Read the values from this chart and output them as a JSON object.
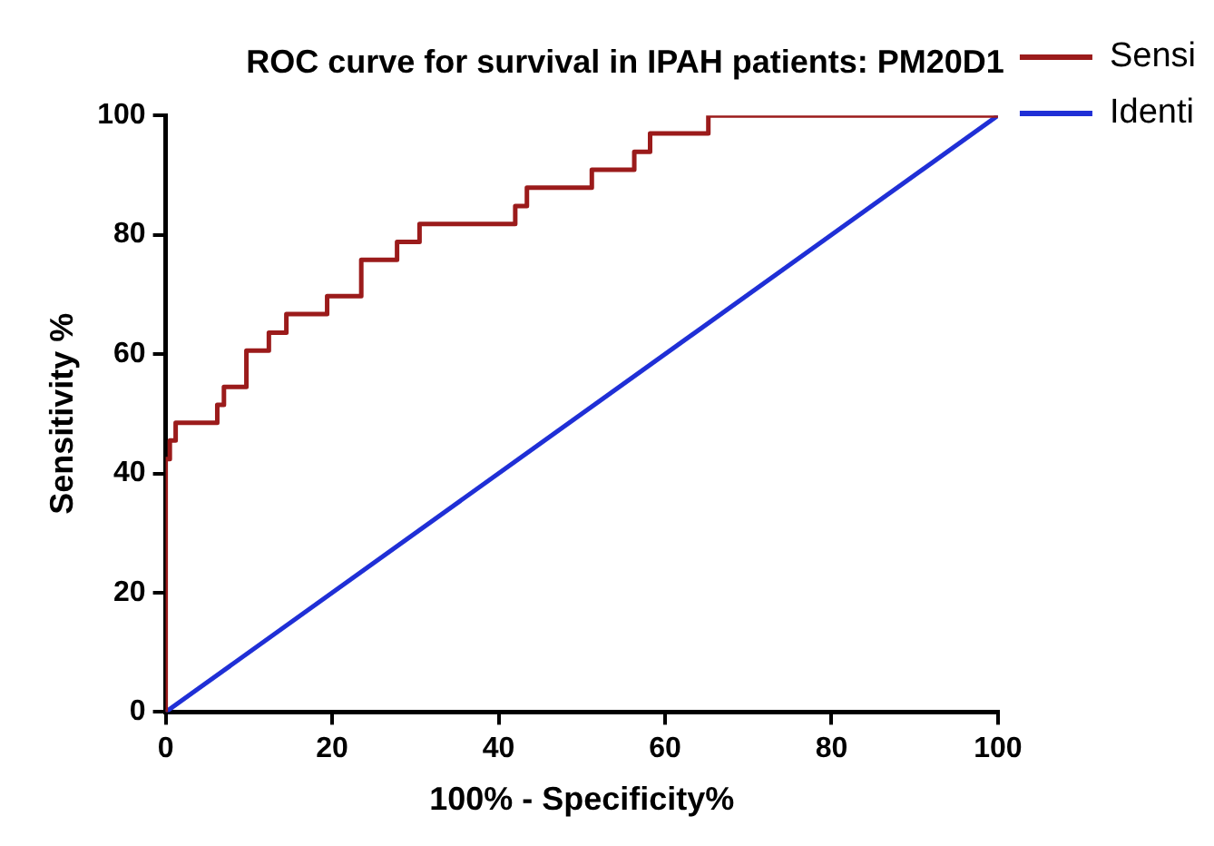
{
  "chart_data": {
    "type": "line",
    "title": "ROC curve for survival in IPAH patients: PM20D1",
    "xlabel": "100% - Specificity%",
    "ylabel": "Sensitivity %",
    "xlim": [
      0,
      100
    ],
    "xticks": [
      0,
      20,
      40,
      60,
      80,
      100
    ],
    "ylim": [
      0,
      100
    ],
    "yticks": [
      0,
      20,
      40,
      60,
      80,
      100
    ],
    "grid": false,
    "legend": "top right",
    "marker": "none",
    "series": [
      {
        "name": "Sensi",
        "type": "step",
        "color": "#9b1b1b",
        "x": [
          0,
          0,
          0.5,
          1.2,
          6.2,
          7,
          9.7,
          12.4,
          14.5,
          19.4,
          23.5,
          27.8,
          30.5,
          42,
          43.4,
          51.2,
          56.3,
          58.2,
          65.2,
          100
        ],
        "values": [
          0,
          42.4,
          45.5,
          48.5,
          51.5,
          54.5,
          60.6,
          63.6,
          66.7,
          69.7,
          75.8,
          78.8,
          81.8,
          84.8,
          87.9,
          90.9,
          93.9,
          97,
          100,
          100
        ]
      },
      {
        "name": "Identi",
        "color": "#1f2fd6",
        "x": [
          0,
          100
        ],
        "values": [
          0,
          100
        ]
      }
    ]
  }
}
